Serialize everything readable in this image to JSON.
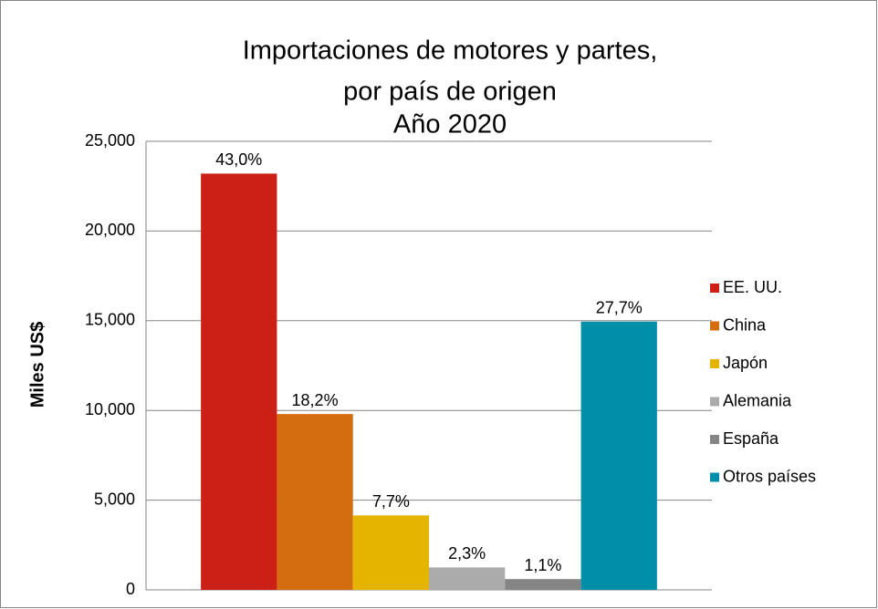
{
  "chart_data": {
    "type": "bar",
    "title": [
      "Importaciones de motores y partes,",
      "por país de origen",
      "Año 2020"
    ],
    "ylabel": "Miles US$",
    "categories": [
      null
    ],
    "series": [
      {
        "name": "EE. UU.",
        "color": "#cc1f16",
        "values": [
          23200
        ],
        "data_labels": [
          "43,0%"
        ]
      },
      {
        "name": "China",
        "color": "#d46c10",
        "values": [
          9800
        ],
        "data_labels": [
          "18,2%"
        ]
      },
      {
        "name": "Japón",
        "color": "#e4b400",
        "values": [
          4150
        ],
        "data_labels": [
          "7,7%"
        ]
      },
      {
        "name": "Alemania",
        "color": "#ababab",
        "values": [
          1250
        ],
        "data_labels": [
          "2,3%"
        ]
      },
      {
        "name": "España",
        "color": "#858585",
        "values": [
          600
        ],
        "data_labels": [
          "1,1%"
        ]
      },
      {
        "name": "Otros países",
        "color": "#008ea8",
        "values": [
          14950
        ],
        "data_labels": [
          "27,7%"
        ]
      }
    ],
    "ylim": [
      0,
      25000
    ],
    "yticks": [
      {
        "value": 0,
        "label": "0"
      },
      {
        "value": 5000,
        "label": "5,000"
      },
      {
        "value": 10000,
        "label": "10,000"
      },
      {
        "value": 15000,
        "label": "15,000"
      },
      {
        "value": 20000,
        "label": "20,000"
      },
      {
        "value": 25000,
        "label": "25,000"
      }
    ],
    "grid": true,
    "legend": "right"
  }
}
